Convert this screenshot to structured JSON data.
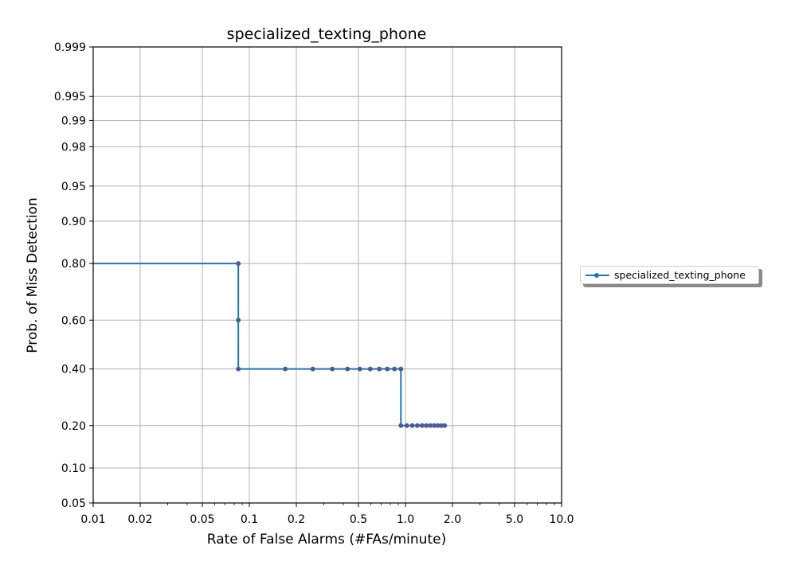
{
  "chart_data": {
    "type": "line",
    "title": "specialized_texting_phone",
    "xlabel": "Rate of False Alarms (#FAs/minute)",
    "ylabel": "Prob. of Miss Detection",
    "xscale": "log",
    "yscale": "normal-deviate (probit)",
    "xlim": [
      0.01,
      10.0
    ],
    "ylim": [
      0.05,
      0.999
    ],
    "x_ticks": [
      0.01,
      0.02,
      0.05,
      0.1,
      0.2,
      0.5,
      1.0,
      2.0,
      5.0,
      10.0
    ],
    "x_tick_labels": [
      "0.01",
      "0.02",
      "0.05",
      "0.1",
      "0.2",
      "0.5",
      "1.0",
      "2.0",
      "5.0",
      "10.0"
    ],
    "y_ticks": [
      0.05,
      0.1,
      0.2,
      0.4,
      0.6,
      0.8,
      0.9,
      0.95,
      0.98,
      0.99,
      0.995,
      0.999
    ],
    "y_tick_labels": [
      "0.05",
      "0.10",
      "0.20",
      "0.40",
      "0.60",
      "0.80",
      "0.90",
      "0.95",
      "0.98",
      "0.99",
      "0.995",
      "0.999"
    ],
    "grid": true,
    "legend_position": "outside-right",
    "series": [
      {
        "name": "specialized_texting_phone",
        "color": "#1f77b4",
        "marker_color": "#6a4c8a",
        "line_points": [
          [
            0.01,
            0.8
          ],
          [
            0.085,
            0.8
          ],
          [
            0.085,
            0.6
          ],
          [
            0.085,
            0.4
          ],
          [
            0.17,
            0.4
          ],
          [
            0.255,
            0.4
          ],
          [
            0.34,
            0.4
          ],
          [
            0.425,
            0.4
          ],
          [
            0.51,
            0.4
          ],
          [
            0.595,
            0.4
          ],
          [
            0.68,
            0.4
          ],
          [
            0.765,
            0.4
          ],
          [
            0.85,
            0.4
          ],
          [
            0.935,
            0.4
          ],
          [
            0.935,
            0.2
          ],
          [
            1.02,
            0.2
          ],
          [
            1.105,
            0.2
          ],
          [
            1.19,
            0.2
          ],
          [
            1.275,
            0.2
          ],
          [
            1.36,
            0.2
          ],
          [
            1.445,
            0.2
          ],
          [
            1.53,
            0.2
          ],
          [
            1.615,
            0.2
          ],
          [
            1.7,
            0.2
          ],
          [
            1.785,
            0.2
          ]
        ],
        "markers": [
          [
            0.085,
            0.8
          ],
          [
            0.085,
            0.6
          ],
          [
            0.085,
            0.4
          ],
          [
            0.17,
            0.4
          ],
          [
            0.255,
            0.4
          ],
          [
            0.34,
            0.4
          ],
          [
            0.425,
            0.4
          ],
          [
            0.51,
            0.4
          ],
          [
            0.595,
            0.4
          ],
          [
            0.68,
            0.4
          ],
          [
            0.765,
            0.4
          ],
          [
            0.85,
            0.4
          ],
          [
            0.935,
            0.4
          ],
          [
            0.935,
            0.2
          ],
          [
            1.02,
            0.2
          ],
          [
            1.105,
            0.2
          ],
          [
            1.19,
            0.2
          ],
          [
            1.275,
            0.2
          ],
          [
            1.36,
            0.2
          ],
          [
            1.445,
            0.2
          ],
          [
            1.53,
            0.2
          ],
          [
            1.615,
            0.2
          ],
          [
            1.7,
            0.2
          ],
          [
            1.785,
            0.2
          ]
        ]
      }
    ]
  }
}
